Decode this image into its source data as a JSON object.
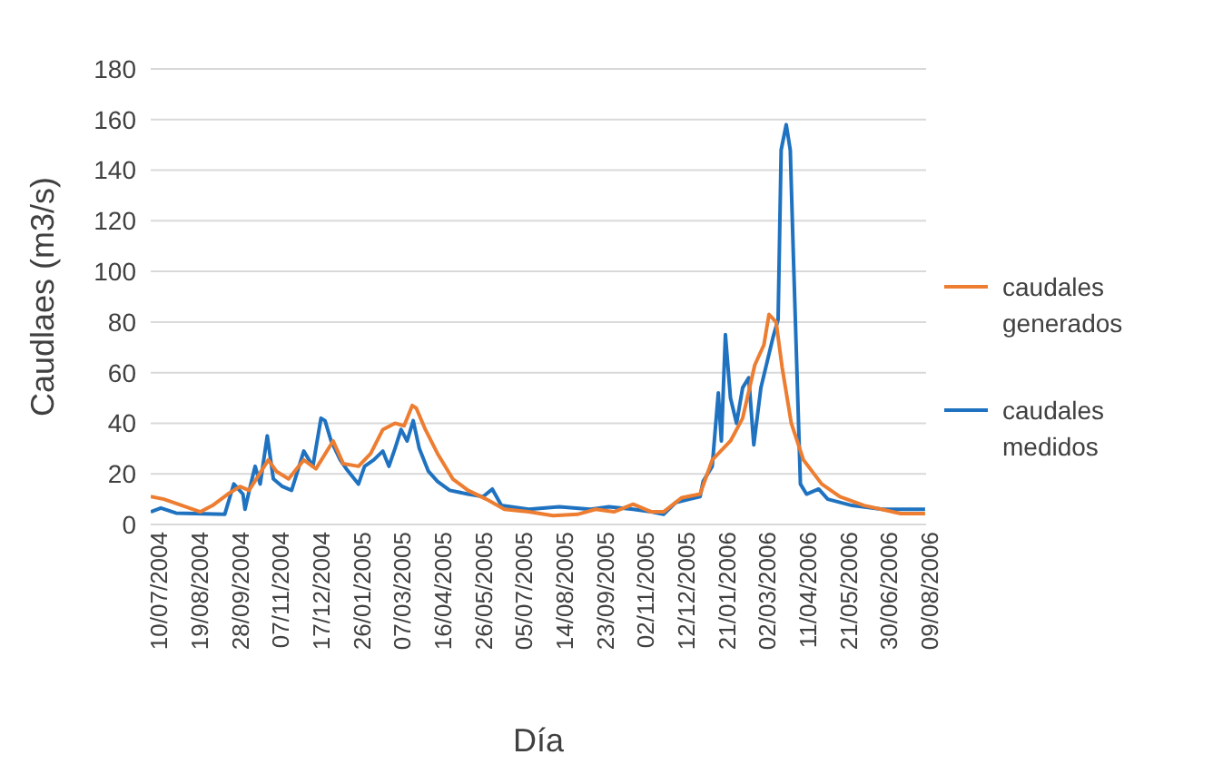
{
  "chart_data": {
    "type": "line",
    "xlabel": "Día",
    "ylabel": "Caudlaes (m3/s)",
    "xlim": [
      "2004-07-10",
      "2006-08-14"
    ],
    "xticks": [
      {
        "value": "2004-07-10",
        "label": "10/07/2004"
      },
      {
        "value": "2004-08-19",
        "label": "19/08/2004"
      },
      {
        "value": "2004-09-28",
        "label": "28/09/2004"
      },
      {
        "value": "2004-11-07",
        "label": "07/11/2004"
      },
      {
        "value": "2004-12-17",
        "label": "17/12/2004"
      },
      {
        "value": "2005-01-26",
        "label": "26/01/2005"
      },
      {
        "value": "2005-03-07",
        "label": "07/03/2005"
      },
      {
        "value": "2005-04-16",
        "label": "16/04/2005"
      },
      {
        "value": "2005-05-26",
        "label": "26/05/2005"
      },
      {
        "value": "2005-07-05",
        "label": "05/07/2005"
      },
      {
        "value": "2005-08-14",
        "label": "14/08/2005"
      },
      {
        "value": "2005-09-23",
        "label": "23/09/2005"
      },
      {
        "value": "2005-11-02",
        "label": "02/11/2005"
      },
      {
        "value": "2005-12-12",
        "label": "12/12/2005"
      },
      {
        "value": "2006-01-21",
        "label": "21/01/2006"
      },
      {
        "value": "2006-03-02",
        "label": "02/03/2006"
      },
      {
        "value": "2006-04-11",
        "label": "11/04/2006"
      },
      {
        "value": "2006-05-21",
        "label": "21/05/2006"
      },
      {
        "value": "2006-06-30",
        "label": "30/06/2006"
      },
      {
        "value": "2006-08-09",
        "label": "09/08/2006"
      }
    ],
    "ylim": [
      0,
      180
    ],
    "yticks": [
      0,
      20,
      40,
      60,
      80,
      100,
      120,
      140,
      160,
      180
    ],
    "grid": "y",
    "legend": "right",
    "marker": "none",
    "line_style": "solid",
    "series": [
      {
        "name": "caudales medidos",
        "color": "#1f72c0",
        "x": [
          "2004-07-10",
          "2004-07-20",
          "2004-08-04",
          "2004-09-21",
          "2004-09-30",
          "2004-10-09",
          "2004-10-11",
          "2004-10-15",
          "2004-10-21",
          "2004-10-26",
          "2004-11-02",
          "2004-11-08",
          "2004-11-17",
          "2004-11-26",
          "2004-12-08",
          "2004-12-17",
          "2004-12-25",
          "2004-12-29",
          "2005-01-04",
          "2005-01-13",
          "2005-01-19",
          "2005-01-31",
          "2005-02-06",
          "2005-02-15",
          "2005-02-24",
          "2005-03-02",
          "2005-03-08",
          "2005-03-14",
          "2005-03-20",
          "2005-03-26",
          "2005-04-01",
          "2005-04-10",
          "2005-04-19",
          "2005-05-01",
          "2005-05-19",
          "2005-06-03",
          "2005-06-12",
          "2005-06-21",
          "2005-07-18",
          "2005-08-17",
          "2005-09-17",
          "2005-10-05",
          "2005-10-29",
          "2005-11-16",
          "2005-11-28",
          "2005-12-10",
          "2006-01-03",
          "2006-01-06",
          "2006-01-15",
          "2006-01-21",
          "2006-01-24",
          "2006-01-28",
          "2006-02-02",
          "2006-02-08",
          "2006-02-14",
          "2006-02-20",
          "2006-02-25",
          "2006-03-04",
          "2006-03-10",
          "2006-03-16",
          "2006-03-21",
          "2006-03-24",
          "2006-03-29",
          "2006-04-02",
          "2006-04-05",
          "2006-04-12",
          "2006-04-18",
          "2006-04-30",
          "2006-05-09",
          "2006-06-02",
          "2006-07-02",
          "2006-08-13"
        ],
        "values": [
          5,
          6.5,
          4.5,
          4,
          16,
          12,
          6,
          13,
          23,
          16,
          35,
          18,
          15,
          13.5,
          29,
          23,
          42,
          41,
          33,
          25.5,
          22,
          16,
          23,
          25.5,
          29,
          23,
          30,
          37.5,
          33,
          41,
          30,
          21,
          17,
          13.5,
          12,
          11,
          14,
          7.5,
          6,
          7,
          6,
          7,
          6,
          5,
          4,
          8.7,
          11,
          17,
          23,
          52,
          33,
          75,
          50,
          40,
          54,
          58,
          31.5,
          54,
          64,
          74,
          81,
          148,
          158,
          148,
          107,
          16,
          12,
          14,
          10,
          7.5,
          6,
          6
        ]
      },
      {
        "name": "caudales generados",
        "color": "#ed7d31",
        "x": [
          "2004-07-10",
          "2004-07-23",
          "2004-08-10",
          "2004-08-28",
          "2004-09-09",
          "2004-09-24",
          "2004-10-06",
          "2004-10-15",
          "2004-10-27",
          "2004-11-03",
          "2004-11-11",
          "2004-11-23",
          "2004-12-08",
          "2004-12-20",
          "2005-01-06",
          "2005-01-16",
          "2005-01-31",
          "2005-02-12",
          "2005-02-24",
          "2005-03-08",
          "2005-03-17",
          "2005-03-25",
          "2005-03-29",
          "2005-04-07",
          "2005-04-19",
          "2005-05-04",
          "2005-05-19",
          "2005-06-06",
          "2005-06-24",
          "2005-07-18",
          "2005-08-11",
          "2005-09-04",
          "2005-09-22",
          "2005-10-10",
          "2005-10-29",
          "2005-11-16",
          "2005-11-28",
          "2005-12-16",
          "2006-01-03",
          "2006-01-15",
          "2006-02-02",
          "2006-02-14",
          "2006-02-26",
          "2006-03-07",
          "2006-03-12",
          "2006-03-19",
          "2006-03-25",
          "2006-04-03",
          "2006-04-15",
          "2006-05-03",
          "2006-05-21",
          "2006-06-14",
          "2006-07-20",
          "2006-08-13"
        ],
        "values": [
          11,
          10,
          7.5,
          5,
          7.5,
          12,
          15,
          13.5,
          21,
          25.5,
          21,
          18,
          25.5,
          22,
          33,
          24,
          23,
          28,
          37.5,
          40,
          39,
          47,
          46,
          37.5,
          28,
          18,
          13.5,
          10,
          6,
          5,
          3.5,
          4,
          6,
          5,
          8,
          5,
          5,
          10.6,
          12,
          25.5,
          33,
          42,
          63,
          71,
          83,
          80,
          62,
          40,
          25.5,
          16,
          11,
          7.5,
          4.3,
          4.3
        ]
      }
    ]
  }
}
